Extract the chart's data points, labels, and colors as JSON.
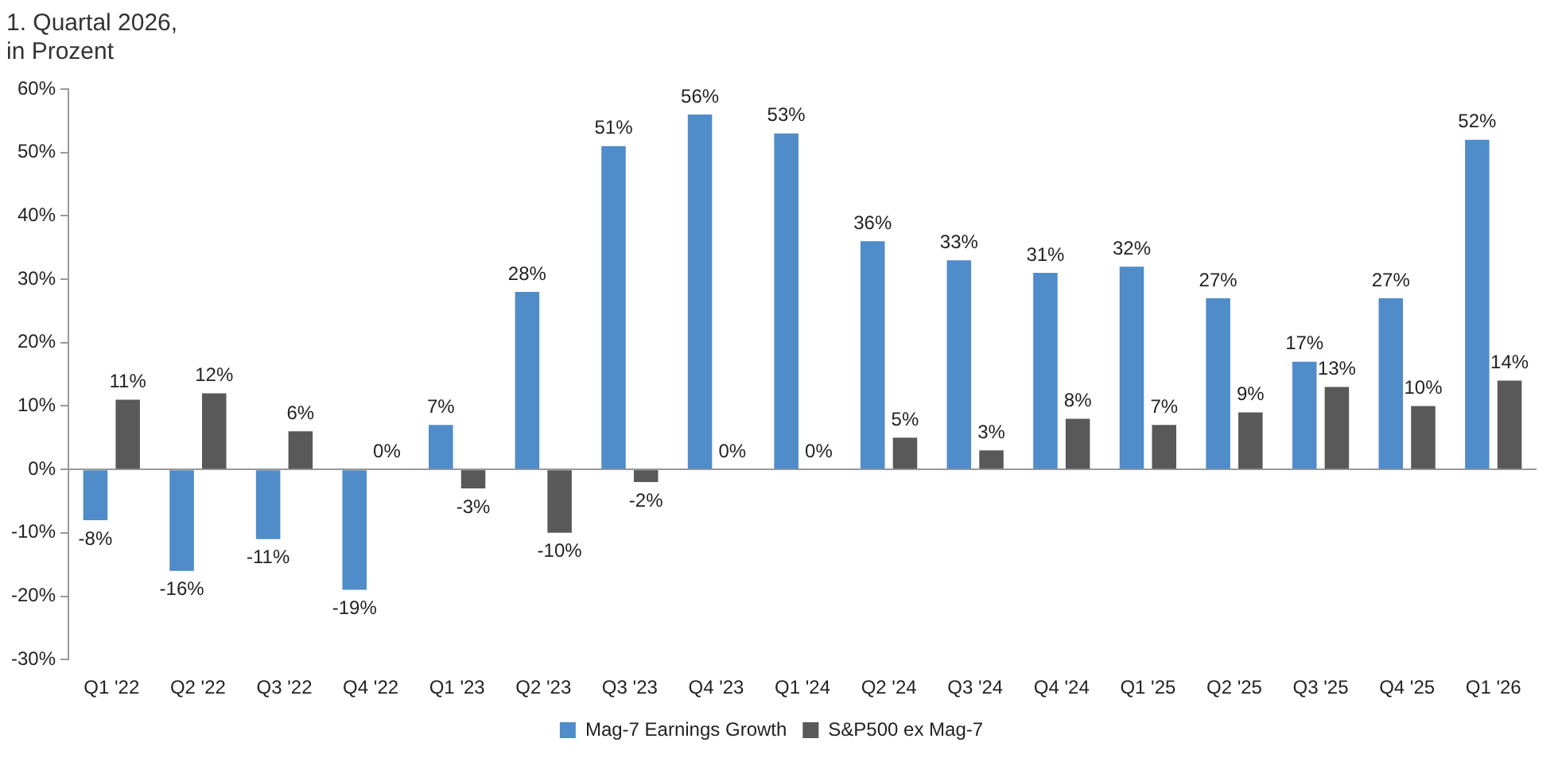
{
  "chart_data": {
    "type": "bar",
    "title": "1. Quartal 2026,\nin Prozent",
    "categories": [
      "Q1 '22",
      "Q2 '22",
      "Q3 '22",
      "Q4 '22",
      "Q1 '23",
      "Q2 '23",
      "Q3 '23",
      "Q4 '23",
      "Q1 '24",
      "Q2 '24",
      "Q3 '24",
      "Q4 '24",
      "Q1 '25",
      "Q2 '25",
      "Q3 '25",
      "Q4 '25",
      "Q1 '26"
    ],
    "series": [
      {
        "name": "Mag-7 Earnings Growth",
        "color": "#4f8cc9",
        "values": [
          -8,
          -16,
          -11,
          -19,
          7,
          28,
          51,
          56,
          53,
          36,
          33,
          31,
          32,
          27,
          17,
          27,
          52
        ],
        "value_labels": [
          "-8%",
          "-16%",
          "-11%",
          "-19%",
          "7%",
          "28%",
          "51%",
          "56%",
          "53%",
          "36%",
          "33%",
          "31%",
          "32%",
          "27%",
          "17%",
          "27%",
          "52%"
        ]
      },
      {
        "name": "S&P500 ex Mag-7",
        "color": "#595959",
        "values": [
          11,
          12,
          6,
          0,
          -3,
          -10,
          -2,
          0,
          0,
          5,
          3,
          8,
          7,
          9,
          13,
          10,
          14
        ],
        "value_labels": [
          "11%",
          "12%",
          "6%",
          "0%",
          "-3%",
          "-10%",
          "-2%",
          "0%",
          "0%",
          "5%",
          "3%",
          "8%",
          "7%",
          "9%",
          "13%",
          "10%",
          "14%"
        ]
      }
    ],
    "ylim": [
      -30,
      60
    ],
    "yticks": [
      {
        "value": -30,
        "label": "-30%"
      },
      {
        "value": -20,
        "label": "-20%"
      },
      {
        "value": -10,
        "label": "-10%"
      },
      {
        "value": 0,
        "label": "0%"
      },
      {
        "value": 10,
        "label": "10%"
      },
      {
        "value": 20,
        "label": "20%"
      },
      {
        "value": 30,
        "label": "30%"
      },
      {
        "value": 40,
        "label": "40%"
      },
      {
        "value": 50,
        "label": "50%"
      },
      {
        "value": 60,
        "label": "60%"
      }
    ],
    "legend": "bottom"
  }
}
